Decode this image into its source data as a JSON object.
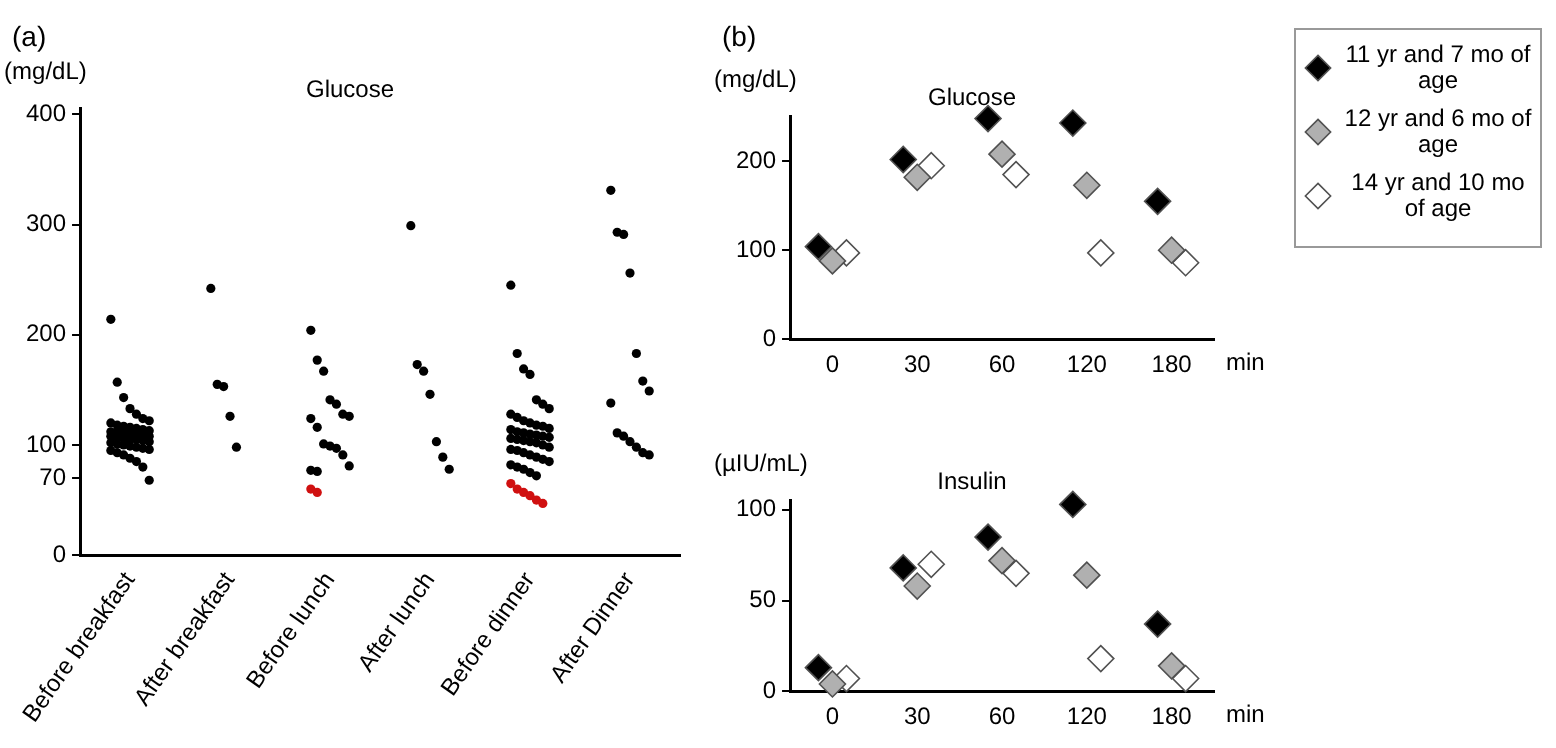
{
  "chart_data": [
    {
      "type": "scatter",
      "title": "Glucose",
      "ylabel": "(mg/dL)",
      "annotations": [
        "(a)"
      ],
      "marker": "circle",
      "categories": [
        "Before breakfast",
        "After breakfast",
        "Before lunch",
        "After lunch",
        "Before dinner",
        "After Dinner"
      ],
      "ylim": [
        0,
        405
      ],
      "yticks": [
        0,
        70,
        100,
        200,
        300,
        400
      ],
      "series": [
        {
          "color": "#000000",
          "x": [
            "Before breakfast",
            "Before breakfast",
            "Before breakfast",
            "Before breakfast",
            "Before breakfast",
            "Before breakfast",
            "Before breakfast",
            "Before breakfast",
            "Before breakfast",
            "Before breakfast",
            "Before breakfast",
            "Before breakfast",
            "Before breakfast",
            "Before breakfast",
            "Before breakfast",
            "Before breakfast",
            "Before breakfast",
            "Before breakfast",
            "Before breakfast",
            "Before breakfast",
            "Before breakfast",
            "Before breakfast",
            "Before breakfast",
            "Before breakfast",
            "Before breakfast",
            "Before breakfast",
            "Before breakfast",
            "Before breakfast",
            "Before breakfast",
            "Before breakfast",
            "Before breakfast",
            "Before breakfast",
            "Before breakfast",
            "Before breakfast",
            "Before breakfast",
            "Before breakfast",
            "Before breakfast",
            "Before breakfast",
            "Before breakfast",
            "Before breakfast",
            "Before breakfast",
            "Before breakfast",
            "After breakfast",
            "After breakfast",
            "After breakfast",
            "After breakfast",
            "After breakfast",
            "Before lunch",
            "Before lunch",
            "Before lunch",
            "Before lunch",
            "Before lunch",
            "Before lunch",
            "Before lunch",
            "Before lunch",
            "Before lunch",
            "Before lunch",
            "Before lunch",
            "Before lunch",
            "Before lunch",
            "Before lunch",
            "Before lunch",
            "Before lunch",
            "After lunch",
            "After lunch",
            "After lunch",
            "After lunch",
            "After lunch",
            "After lunch",
            "After lunch",
            "Before dinner",
            "Before dinner",
            "Before dinner",
            "Before dinner",
            "Before dinner",
            "Before dinner",
            "Before dinner",
            "Before dinner",
            "Before dinner",
            "Before dinner",
            "Before dinner",
            "Before dinner",
            "Before dinner",
            "Before dinner",
            "Before dinner",
            "Before dinner",
            "Before dinner",
            "Before dinner",
            "Before dinner",
            "Before dinner",
            "Before dinner",
            "Before dinner",
            "Before dinner",
            "Before dinner",
            "Before dinner",
            "Before dinner",
            "Before dinner",
            "Before dinner",
            "Before dinner",
            "Before dinner",
            "Before dinner",
            "Before dinner",
            "Before dinner",
            "Before dinner",
            "Before dinner",
            "Before dinner",
            "Before dinner",
            "Before dinner",
            "Before dinner",
            "Before dinner",
            "After Dinner",
            "After Dinner",
            "After Dinner",
            "After Dinner",
            "After Dinner",
            "After Dinner",
            "After Dinner",
            "After Dinner",
            "After Dinner",
            "After Dinner",
            "After Dinner",
            "After Dinner",
            "After Dinner",
            "After Dinner"
          ],
          "values": [
            214,
            157,
            143,
            133,
            128,
            124,
            122,
            120,
            118,
            117,
            116,
            115,
            114,
            113,
            112,
            112,
            111,
            110,
            110,
            109,
            108,
            108,
            107,
            106,
            105,
            105,
            104,
            103,
            102,
            101,
            100,
            99,
            98,
            97,
            96,
            95,
            93,
            91,
            88,
            85,
            80,
            68,
            242,
            155,
            153,
            126,
            98,
            204,
            177,
            167,
            141,
            137,
            128,
            126,
            124,
            116,
            101,
            99,
            97,
            91,
            81,
            77,
            76,
            299,
            173,
            167,
            146,
            103,
            89,
            78,
            245,
            183,
            169,
            164,
            141,
            137,
            133,
            128,
            125,
            122,
            120,
            118,
            117,
            115,
            114,
            112,
            111,
            110,
            109,
            108,
            107,
            106,
            105,
            104,
            103,
            102,
            100,
            98,
            96,
            95,
            93,
            91,
            89,
            87,
            85,
            82,
            80,
            78,
            75,
            72,
            331,
            293,
            291,
            256,
            183,
            158,
            149,
            138,
            111,
            108,
            103,
            98,
            93,
            91
          ]
        },
        {
          "color": "#d01010",
          "x": [
            "Before lunch",
            "Before lunch",
            "Before dinner",
            "Before dinner",
            "Before dinner",
            "Before dinner",
            "Before dinner",
            "Before dinner"
          ],
          "values": [
            60,
            57,
            65,
            60,
            57,
            54,
            50,
            47
          ]
        }
      ]
    },
    {
      "type": "scatter",
      "title": "Glucose",
      "ylabel": "(mg/dL)",
      "xlabel": "min",
      "annotations": [
        "(b)"
      ],
      "marker": "diamond",
      "legend": "right",
      "categories": [
        "0",
        "30",
        "60",
        "120",
        "180"
      ],
      "ylim": [
        0,
        250
      ],
      "yticks": [
        0,
        100,
        200
      ],
      "series": [
        {
          "name": "11 yr and 7 mo of age",
          "color": "#000000",
          "values": [
            104,
            202,
            248,
            243,
            155
          ]
        },
        {
          "name": "12 yr and 6 mo of age",
          "color": "#b0b0b0",
          "values": [
            88,
            182,
            208,
            173,
            100
          ]
        },
        {
          "name": "14 yr and 10 mo of age",
          "color": "#ffffff",
          "values": [
            97,
            195,
            185,
            97,
            86
          ]
        }
      ]
    },
    {
      "type": "scatter",
      "title": "Insulin",
      "ylabel": "(µIU/mL)",
      "xlabel": "min",
      "marker": "diamond",
      "categories": [
        "0",
        "30",
        "60",
        "120",
        "180"
      ],
      "ylim": [
        0,
        105
      ],
      "yticks": [
        0,
        50,
        100
      ],
      "series": [
        {
          "color": "#000000",
          "values": [
            13,
            68,
            85,
            103,
            37
          ]
        },
        {
          "color": "#b0b0b0",
          "values": [
            4,
            58,
            72,
            64,
            14
          ]
        },
        {
          "color": "#ffffff",
          "values": [
            7,
            70,
            65,
            18,
            7
          ]
        }
      ]
    }
  ]
}
